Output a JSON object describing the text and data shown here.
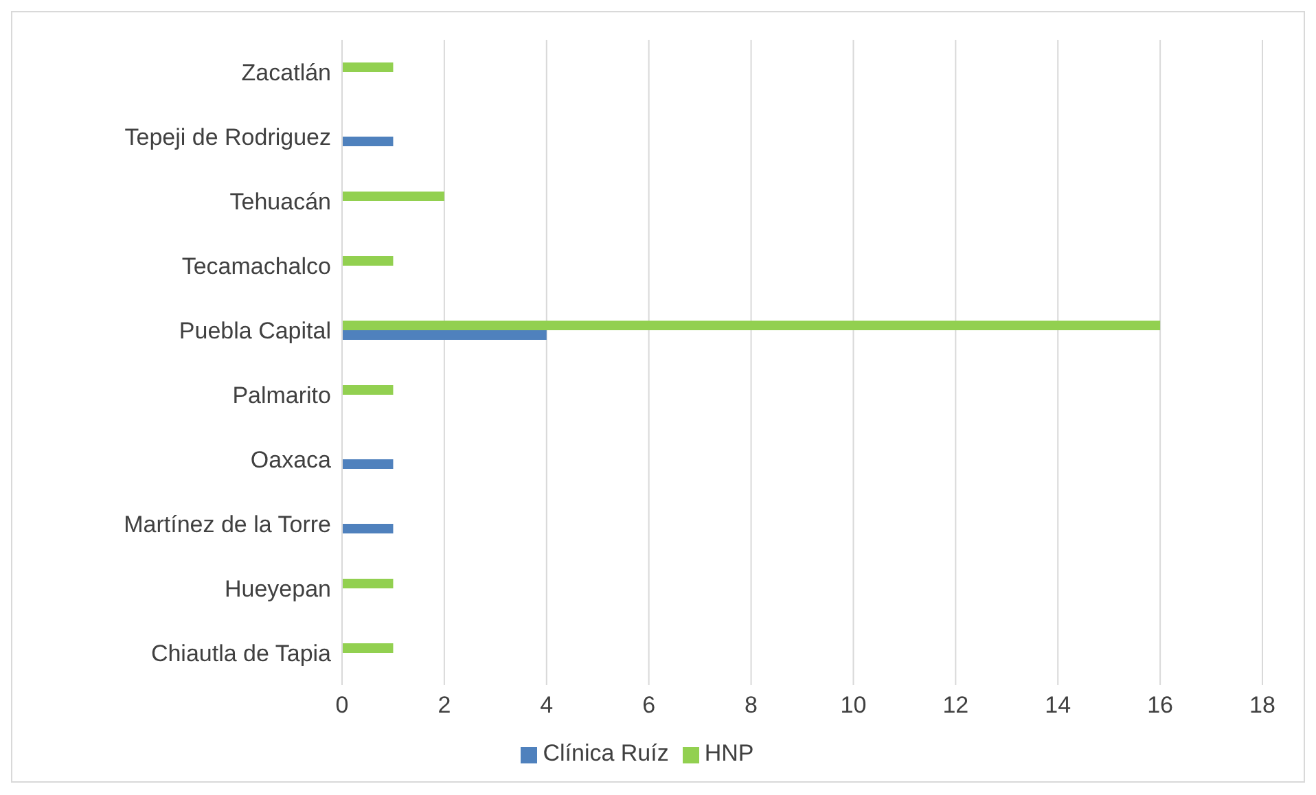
{
  "chart_data": {
    "type": "bar",
    "orientation": "horizontal",
    "categories": [
      "Zacatlán",
      "Tepeji de Rodriguez",
      "Tehuacán",
      "Tecamachalco",
      "Puebla Capital",
      "Palmarito",
      "Oaxaca",
      "Martínez de la Torre",
      "Hueyepan",
      "Chiautla de Tapia"
    ],
    "series": [
      {
        "name": "HNP",
        "color": "#92d050",
        "values": [
          1,
          null,
          2,
          1,
          16,
          1,
          null,
          null,
          1,
          1
        ]
      },
      {
        "name": "Clínica Ruíz",
        "color": "#4f81bd",
        "values": [
          null,
          1,
          null,
          null,
          4,
          null,
          1,
          1,
          null,
          null
        ]
      }
    ],
    "xlim": [
      0,
      18
    ],
    "xticks": [
      0,
      2,
      4,
      6,
      8,
      10,
      12,
      14,
      16,
      18
    ],
    "grid": "x",
    "legend": "bottom"
  }
}
